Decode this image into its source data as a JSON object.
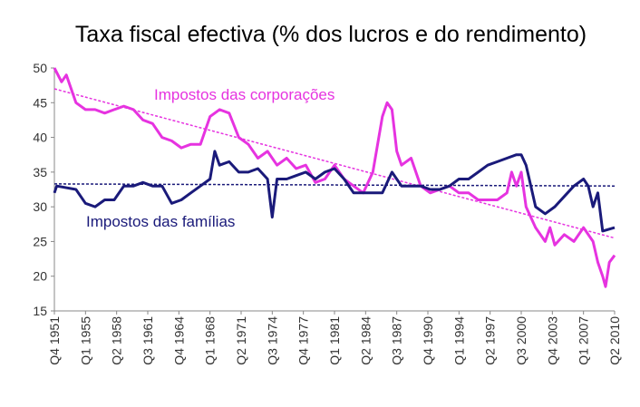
{
  "chart_data": {
    "type": "line",
    "title": "Taxa fiscal efectiva (% dos lucros e do rendimento)",
    "xlim": [
      1951.75,
      2010.25
    ],
    "xticks": [
      {
        "value": 1951.75,
        "label": "Q4 1951"
      },
      {
        "value": 1955,
        "label": "Q1 1955"
      },
      {
        "value": 1958.25,
        "label": "Q2 1958"
      },
      {
        "value": 1961.5,
        "label": "Q3 1961"
      },
      {
        "value": 1964.75,
        "label": "Q4 1964"
      },
      {
        "value": 1968,
        "label": "Q1 1968"
      },
      {
        "value": 1971.25,
        "label": "Q2 1971"
      },
      {
        "value": 1974.5,
        "label": "Q3 1974"
      },
      {
        "value": 1977.75,
        "label": "Q4 1977"
      },
      {
        "value": 1981,
        "label": "Q1 1981"
      },
      {
        "value": 1984.25,
        "label": "Q2 1984"
      },
      {
        "value": 1987.5,
        "label": "Q3 1987"
      },
      {
        "value": 1990.75,
        "label": "Q4 1990"
      },
      {
        "value": 1994,
        "label": "Q1 1994"
      },
      {
        "value": 1997.25,
        "label": "Q2 1997"
      },
      {
        "value": 2000.5,
        "label": "Q3 2000"
      },
      {
        "value": 2003.75,
        "label": "Q4 2003"
      },
      {
        "value": 2007,
        "label": "Q1 2007"
      },
      {
        "value": 2010.25,
        "label": "Q2 2010"
      }
    ],
    "ylim": [
      15,
      50
    ],
    "yticks": [
      15,
      20,
      25,
      30,
      35,
      40,
      45,
      50
    ],
    "grid": false,
    "series": [
      {
        "name": "Impostos das corporações",
        "color": "#e633e0",
        "x": [
          1951.75,
          1952.5,
          1953,
          1954,
          1955,
          1956,
          1957,
          1958,
          1959,
          1960,
          1961,
          1962,
          1963,
          1964,
          1965,
          1966,
          1967,
          1968,
          1969,
          1970,
          1971,
          1972,
          1973,
          1974,
          1975,
          1976,
          1977,
          1978,
          1979,
          1980,
          1981,
          1982,
          1983,
          1984,
          1985,
          1986,
          1986.5,
          1987,
          1987.5,
          1988,
          1989,
          1989.5,
          1990,
          1991,
          1992,
          1993,
          1994,
          1995,
          1996,
          1997,
          1998,
          1999,
          1999.5,
          2000,
          2000.5,
          2001,
          2002,
          2003,
          2003.5,
          2004,
          2005,
          2006,
          2007,
          2008,
          2008.5,
          2009,
          2009.3,
          2009.7,
          2010.25
        ],
        "values": [
          50,
          48,
          49,
          45,
          44,
          44,
          43.5,
          44,
          44.5,
          44,
          42.5,
          42,
          40,
          39.5,
          38.5,
          39,
          39,
          43,
          44,
          43.5,
          40,
          39,
          37,
          38,
          36,
          37,
          35.5,
          36,
          33.5,
          34,
          36,
          34,
          33,
          32,
          35,
          43,
          45,
          44,
          38,
          36,
          37,
          35,
          33,
          32,
          32.5,
          33,
          32,
          32,
          31,
          31,
          31,
          32,
          35,
          33,
          35,
          30,
          27,
          25,
          27,
          24.5,
          26,
          25,
          27,
          25,
          22,
          20,
          18.5,
          22,
          23
        ]
      },
      {
        "name": "Impostos das famílias",
        "color": "#1a1a7a",
        "x": [
          1951.75,
          1952,
          1954,
          1955,
          1956,
          1957,
          1958,
          1959,
          1960,
          1961,
          1962,
          1963,
          1964,
          1965,
          1966,
          1967,
          1968,
          1968.5,
          1969,
          1970,
          1971,
          1972,
          1973,
          1974,
          1974.5,
          1975,
          1976,
          1977,
          1978,
          1979,
          1980,
          1981,
          1982,
          1983,
          1984,
          1985,
          1986,
          1987,
          1988,
          1989,
          1990,
          1991,
          1992,
          1993,
          1994,
          1995,
          1996,
          1997,
          1998,
          1999,
          2000,
          2000.5,
          2001,
          2001.5,
          2002,
          2003,
          2004,
          2005,
          2006,
          2007,
          2007.5,
          2008,
          2008.5,
          2009,
          2010.25
        ],
        "values": [
          32,
          33,
          32.5,
          30.5,
          30,
          31,
          31,
          33,
          33,
          33.5,
          33,
          33,
          30.5,
          31,
          32,
          33,
          34,
          38,
          36,
          36.5,
          35,
          35,
          35.5,
          34,
          28.5,
          34,
          34,
          34.5,
          35,
          34,
          35,
          35.5,
          34,
          32,
          32,
          32,
          32,
          35,
          33,
          33,
          33,
          32.5,
          32.5,
          33,
          34,
          34,
          35,
          36,
          36.5,
          37,
          37.5,
          37.5,
          36,
          33,
          30,
          29,
          30,
          31.5,
          33,
          34,
          33,
          30,
          32,
          26.5,
          27
        ]
      }
    ],
    "trendlines": [
      {
        "color": "#e633e0",
        "x": [
          1951.75,
          2010.25
        ],
        "values": [
          47,
          25.5
        ]
      },
      {
        "color": "#1a1a7a",
        "x": [
          1951.75,
          2010.25
        ],
        "values": [
          33.3,
          33
        ]
      }
    ]
  }
}
